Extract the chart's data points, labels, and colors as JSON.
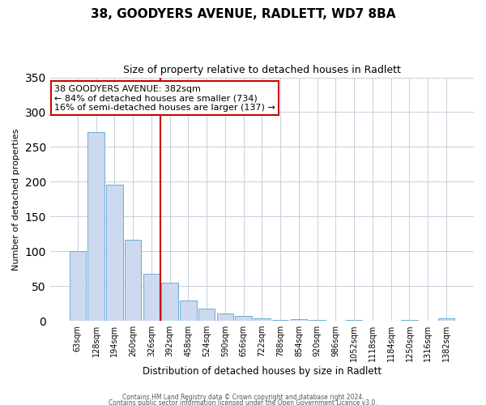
{
  "title": "38, GOODYERS AVENUE, RADLETT, WD7 8BA",
  "subtitle": "Size of property relative to detached houses in Radlett",
  "xlabel": "Distribution of detached houses by size in Radlett",
  "ylabel": "Number of detached properties",
  "bar_color": "#ccd9ee",
  "bar_edge_color": "#6baed6",
  "background_color": "#ffffff",
  "grid_color": "#c8d0dc",
  "vline_x": 4.5,
  "vline_color": "#cc0000",
  "annotation_title": "38 GOODYERS AVENUE: 382sqm",
  "annotation_line1": "← 84% of detached houses are smaller (734)",
  "annotation_line2": "16% of semi-detached houses are larger (137) →",
  "annotation_box_color": "#ffffff",
  "annotation_box_edge": "#cc0000",
  "categories": [
    "63sqm",
    "128sqm",
    "194sqm",
    "260sqm",
    "326sqm",
    "392sqm",
    "458sqm",
    "524sqm",
    "590sqm",
    "656sqm",
    "722sqm",
    "788sqm",
    "854sqm",
    "920sqm",
    "986sqm",
    "1052sqm",
    "1118sqm",
    "1184sqm",
    "1250sqm",
    "1316sqm",
    "1382sqm"
  ],
  "values": [
    100,
    272,
    196,
    116,
    68,
    55,
    29,
    17,
    11,
    7,
    4,
    1,
    2,
    1,
    0,
    1,
    0,
    0,
    1,
    0,
    4
  ],
  "ylim": [
    0,
    350
  ],
  "yticks": [
    0,
    50,
    100,
    150,
    200,
    250,
    300,
    350
  ],
  "footnote1": "Contains HM Land Registry data © Crown copyright and database right 2024.",
  "footnote2": "Contains public sector information licensed under the Open Government Licence v3.0."
}
